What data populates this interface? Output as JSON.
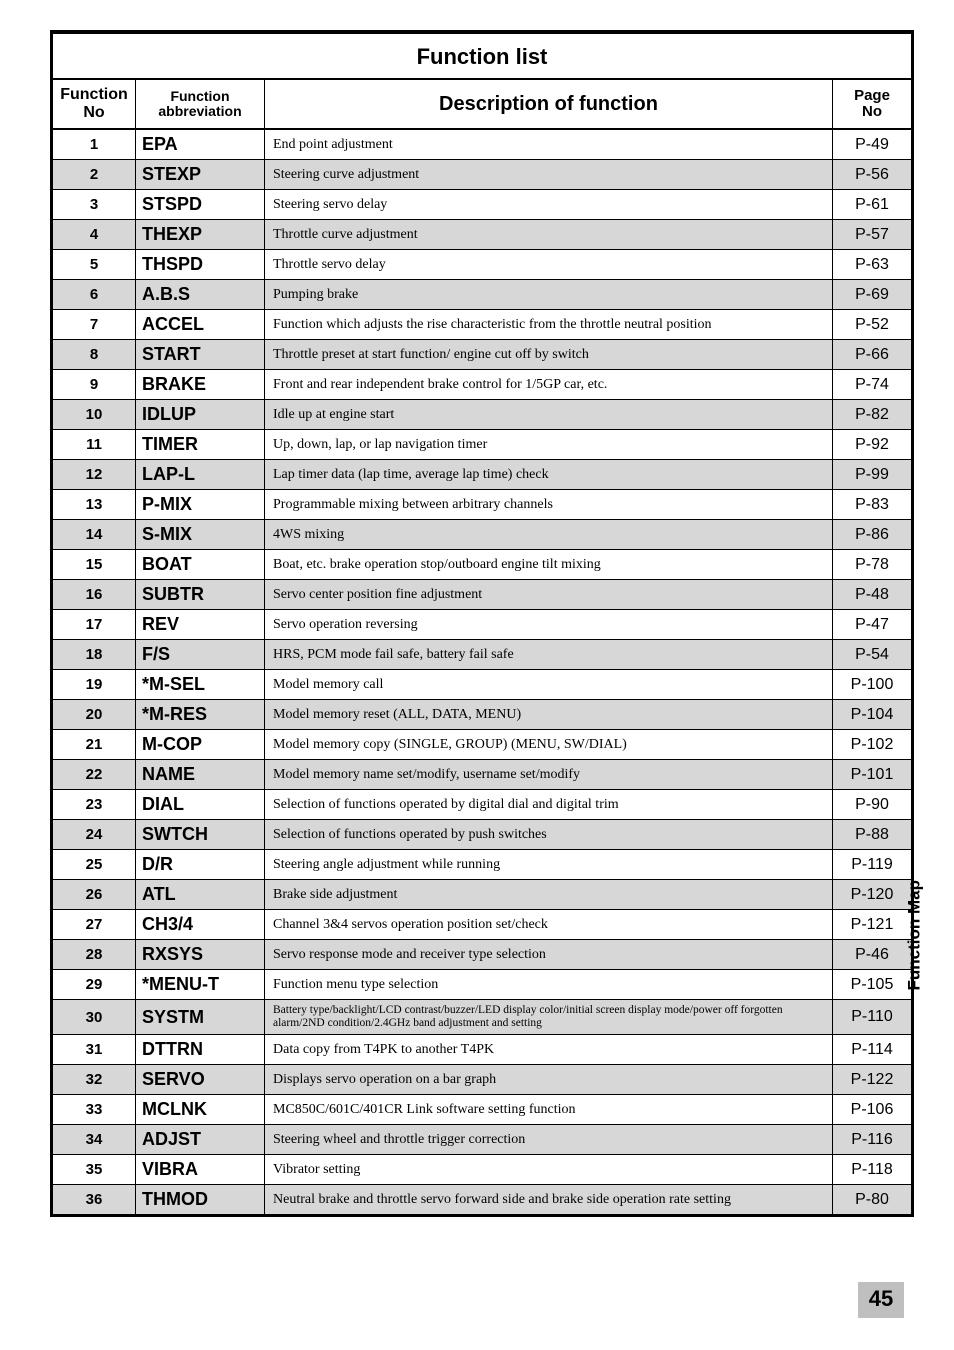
{
  "title": "Function list",
  "headers": {
    "no": "Function\nNo",
    "abbr": "Function abbreviation",
    "desc": "Description of function",
    "page": "Page\nNo"
  },
  "rows": [
    {
      "no": "1",
      "abbr": "EPA",
      "desc": "End point adjustment",
      "page": "P-49",
      "shade": false
    },
    {
      "no": "2",
      "abbr": "STEXP",
      "desc": "Steering curve adjustment",
      "page": "P-56",
      "shade": true
    },
    {
      "no": "3",
      "abbr": "STSPD",
      "desc": "Steering servo delay",
      "page": "P-61",
      "shade": false
    },
    {
      "no": "4",
      "abbr": "THEXP",
      "desc": "Throttle curve adjustment",
      "page": "P-57",
      "shade": true
    },
    {
      "no": "5",
      "abbr": "THSPD",
      "desc": "Throttle servo delay",
      "page": "P-63",
      "shade": false
    },
    {
      "no": "6",
      "abbr": "A.B.S",
      "desc": "Pumping brake",
      "page": "P-69",
      "shade": true
    },
    {
      "no": "7",
      "abbr": "ACCEL",
      "desc": "Function which adjusts the rise characteristic from the throttle neutral position",
      "page": "P-52",
      "shade": false
    },
    {
      "no": "8",
      "abbr": "START",
      "desc": "Throttle preset at start function/ engine cut off by switch",
      "page": "P-66",
      "shade": true
    },
    {
      "no": "9",
      "abbr": "BRAKE",
      "desc": "Front and rear independent brake control for 1/5GP car, etc.",
      "page": "P-74",
      "shade": false
    },
    {
      "no": "10",
      "abbr": "IDLUP",
      "desc": "Idle up at engine start",
      "page": "P-82",
      "shade": true
    },
    {
      "no": "11",
      "abbr": "TIMER",
      "desc": "Up, down, lap, or lap navigation timer",
      "page": "P-92",
      "shade": false
    },
    {
      "no": "12",
      "abbr": "LAP-L",
      "desc": "Lap timer data (lap time, average lap time) check",
      "page": "P-99",
      "shade": true
    },
    {
      "no": "13",
      "abbr": "P-MIX",
      "desc": "Programmable mixing between arbitrary channels",
      "page": "P-83",
      "shade": false
    },
    {
      "no": "14",
      "abbr": "S-MIX",
      "desc": "4WS mixing",
      "page": "P-86",
      "shade": true
    },
    {
      "no": "15",
      "abbr": "BOAT",
      "desc": "Boat, etc. brake operation stop/outboard engine tilt mixing",
      "page": "P-78",
      "shade": false
    },
    {
      "no": "16",
      "abbr": "SUBTR",
      "desc": "Servo center position fine adjustment",
      "page": "P-48",
      "shade": true
    },
    {
      "no": "17",
      "abbr": "REV",
      "desc": "Servo operation reversing",
      "page": "P-47",
      "shade": false
    },
    {
      "no": "18",
      "abbr": "F/S",
      "desc": "HRS, PCM mode fail safe, battery fail safe",
      "page": "P-54",
      "shade": true
    },
    {
      "no": "19",
      "abbr": "*M-SEL",
      "desc": "Model memory call",
      "page": "P-100",
      "shade": false
    },
    {
      "no": "20",
      "abbr": "*M-RES",
      "desc": "Model memory reset (ALL, DATA, MENU)",
      "page": "P-104",
      "shade": true
    },
    {
      "no": "21",
      "abbr": "M-COP",
      "desc": "Model memory copy (SINGLE, GROUP) (MENU, SW/DIAL)",
      "page": "P-102",
      "shade": false
    },
    {
      "no": "22",
      "abbr": "NAME",
      "desc": "Model memory name set/modify, username set/modify",
      "page": "P-101",
      "shade": true
    },
    {
      "no": "23",
      "abbr": "DIAL",
      "desc": "Selection of functions operated by digital dial and digital trim",
      "page": "P-90",
      "shade": false
    },
    {
      "no": "24",
      "abbr": "SWTCH",
      "desc": "Selection of functions operated by push switches",
      "page": "P-88",
      "shade": true
    },
    {
      "no": "25",
      "abbr": "D/R",
      "desc": "Steering angle adjustment while running",
      "page": "P-119",
      "shade": false
    },
    {
      "no": "26",
      "abbr": "ATL",
      "desc": "Brake side adjustment",
      "page": "P-120",
      "shade": true
    },
    {
      "no": "27",
      "abbr": "CH3/4",
      "desc": "Channel 3&4 servos operation position set/check",
      "page": "P-121",
      "shade": false
    },
    {
      "no": "28",
      "abbr": "RXSYS",
      "desc": "Servo response mode and receiver type selection",
      "page": "P-46",
      "shade": true
    },
    {
      "no": "29",
      "abbr": "*MENU-T",
      "desc": "Function menu type selection",
      "page": "P-105",
      "shade": false
    },
    {
      "no": "30",
      "abbr": "SYSTM",
      "desc": "Battery type/backlight/LCD contrast/buzzer/LED display color/initial screen display mode/power off forgotten alarm/2ND condition/2.4GHz band adjustment and setting",
      "page": "P-110",
      "shade": true,
      "small": true
    },
    {
      "no": "31",
      "abbr": "DTTRN",
      "desc": "Data copy from T4PK to another T4PK",
      "page": "P-114",
      "shade": false
    },
    {
      "no": "32",
      "abbr": "SERVO",
      "desc": "Displays servo operation on a bar graph",
      "page": "P-122",
      "shade": true
    },
    {
      "no": "33",
      "abbr": "MCLNK",
      "desc": "MC850C/601C/401CR Link software setting function",
      "page": "P-106",
      "shade": false
    },
    {
      "no": "34",
      "abbr": "ADJST",
      "desc": "Steering wheel and throttle trigger correction",
      "page": "P-116",
      "shade": true
    },
    {
      "no": "35",
      "abbr": "VIBRA",
      "desc": "Vibrator setting",
      "page": "P-118",
      "shade": false
    },
    {
      "no": "36",
      "abbr": "THMOD",
      "desc": "Neutral brake and throttle servo forward side and brake side operation rate setting",
      "page": "P-80",
      "shade": true
    }
  ],
  "sideLabel": "Function Map",
  "pageNumber": "45",
  "colors": {
    "shade": "#d7d7d7",
    "footerBg": "#bfbfbf",
    "border": "#000000",
    "background": "#ffffff"
  }
}
